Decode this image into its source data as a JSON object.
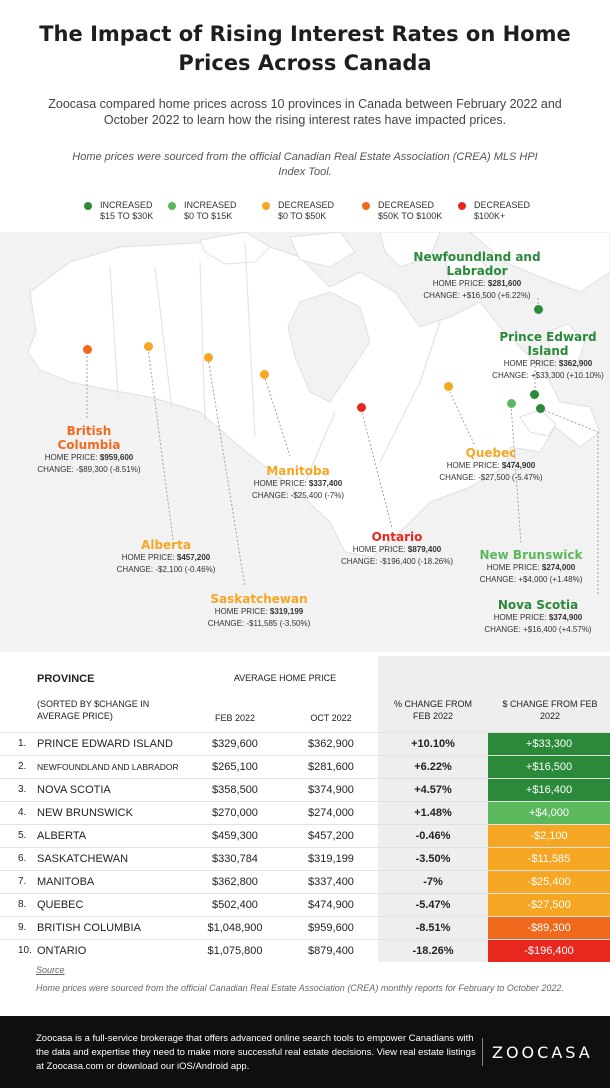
{
  "title": "The Impact of Rising Interest Rates on Home Prices Across Canada",
  "intro": "Zoocasa compared home prices across 10 provinces in Canada between February 2022 and October 2022 to learn how the rising interest rates have impacted prices.",
  "source_note": "Home prices were sourced from the official Canadian Real Estate Association (CREA) MLS HPI Index Tool.",
  "colors": {
    "inc_high": "#2a8a3a",
    "inc_low": "#5cb85c",
    "dec_low": "#f5a623",
    "dec_mid": "#f06a1e",
    "dec_high": "#e8281e"
  },
  "legend": [
    {
      "line1": "INCREASED",
      "line2": "$15 TO $30K",
      "color": "#2a8a3a"
    },
    {
      "line1": "INCREASED",
      "line2": "$0 TO $15K",
      "color": "#5cb85c"
    },
    {
      "line1": "DECREASED",
      "line2": "$0 TO $50K",
      "color": "#f5a623"
    },
    {
      "line1": "DECREASED",
      "line2": "$50K TO $100K",
      "color": "#f06a1e"
    },
    {
      "line1": "DECREASED",
      "line2": "$100K+",
      "color": "#e8281e"
    }
  ],
  "map": {
    "price_label": "HOME PRICE:",
    "change_label": "CHANGE:",
    "provinces": [
      {
        "name1": "British",
        "name2": "Columbia",
        "price": "$959,600",
        "change": "-$89,300 (-8.51%)",
        "color": "#f06a1e"
      },
      {
        "name1": "Alberta",
        "name2": "",
        "price": "$457,200",
        "change": "-$2,100 (-0.46%)",
        "color": "#f5a623"
      },
      {
        "name1": "Saskatchewan",
        "name2": "",
        "price": "$319,199",
        "change": "-$11,585 (-3.50%)",
        "color": "#f5a623"
      },
      {
        "name1": "Manitoba",
        "name2": "",
        "price": "$337,400",
        "change": "-$25,400 (-7%)",
        "color": "#f5a623"
      },
      {
        "name1": "Ontario",
        "name2": "",
        "price": "$879,400",
        "change": "-$196,400 (-18.26%)",
        "color": "#e8281e"
      },
      {
        "name1": "Quebec",
        "name2": "",
        "price": "$474,900",
        "change": "-$27,500 (-5.47%)",
        "color": "#f5a623"
      },
      {
        "name1": "Newfoundland and",
        "name2": "Labrador",
        "price": "$281,600",
        "change": "+$16,500 (+6.22%)",
        "color": "#2a8a3a"
      },
      {
        "name1": "Prince Edward",
        "name2": "Island",
        "price": "$362,900",
        "change": "+$33,300 (+10.10%)",
        "color": "#2a8a3a"
      },
      {
        "name1": "New Brunswick",
        "name2": "",
        "price": "$274,000",
        "change": "+$4,000 (+1.48%)",
        "color": "#5cb85c"
      },
      {
        "name1": "Nova Scotia",
        "name2": "",
        "price": "$374,900",
        "change": "+$16,400 (+4.57%)",
        "color": "#2a8a3a"
      }
    ]
  },
  "table": {
    "header_province": "PROVINCE",
    "header_sorted": "(SORTED BY $CHANGE IN AVERAGE PRICE)",
    "header_avg": "AVERAGE HOME PRICE",
    "header_feb": "FEB 2022",
    "header_oct": "OCT 2022",
    "header_pct": "% CHANGE FROM FEB 2022",
    "header_dollar": "$ CHANGE FROM FEB 2022",
    "rows": [
      {
        "rank": "1.",
        "province": "PRINCE EDWARD ISLAND",
        "feb": "$329,600",
        "oct": "$362,900",
        "pct": "+10.10%",
        "change": "+$33,300",
        "color": "#2a8a3a"
      },
      {
        "rank": "2.",
        "province": "NEWFOUNDLAND AND LABRADOR",
        "feb": "$265,100",
        "oct": "$281,600",
        "pct": "+6.22%",
        "change": "+$16,500",
        "color": "#2a8a3a"
      },
      {
        "rank": "3.",
        "province": "NOVA SCOTIA",
        "feb": "$358,500",
        "oct": "$374,900",
        "pct": "+4.57%",
        "change": "+$16,400",
        "color": "#2a8a3a"
      },
      {
        "rank": "4.",
        "province": "NEW BRUNSWICK",
        "feb": "$270,000",
        "oct": "$274,000",
        "pct": "+1.48%",
        "change": "+$4,000",
        "color": "#5cb85c"
      },
      {
        "rank": "5.",
        "province": "ALBERTA",
        "feb": "$459,300",
        "oct": "$457,200",
        "pct": "-0.46%",
        "change": "-$2,100",
        "color": "#f5a623"
      },
      {
        "rank": "6.",
        "province": "SASKATCHEWAN",
        "feb": "$330,784",
        "oct": "$319,199",
        "pct": "-3.50%",
        "change": "-$11,585",
        "color": "#f5a623"
      },
      {
        "rank": "7.",
        "province": "MANITOBA",
        "feb": "$362,800",
        "oct": "$337,400",
        "pct": "-7%",
        "change": "-$25,400",
        "color": "#f5a623"
      },
      {
        "rank": "8.",
        "province": "QUEBEC",
        "feb": "$502,400",
        "oct": "$474,900",
        "pct": "-5.47%",
        "change": "-$27,500",
        "color": "#f5a623"
      },
      {
        "rank": "9.",
        "province": "BRITISH COLUMBIA",
        "feb": "$1,048,900",
        "oct": "$959,600",
        "pct": "-8.51%",
        "change": "-$89,300",
        "color": "#f06a1e"
      },
      {
        "rank": "10.",
        "province": "ONTARIO",
        "feb": "$1,075,800",
        "oct": "$879,400",
        "pct": "-18.26%",
        "change": "-$196,400",
        "color": "#e8281e"
      }
    ]
  },
  "source": {
    "heading": "Source",
    "text": "Home prices were sourced from the official Canadian Real Estate Association (CREA) monthly reports for February to October 2022."
  },
  "footer": {
    "text": "Zoocasa is a full-service brokerage that offers advanced online search tools to empower Canadians with the data and expertise they need to make more successful real estate decisions. View real estate listings at Zoocasa.com or download our iOS/Android app.",
    "logo": "ZOOCASA"
  }
}
